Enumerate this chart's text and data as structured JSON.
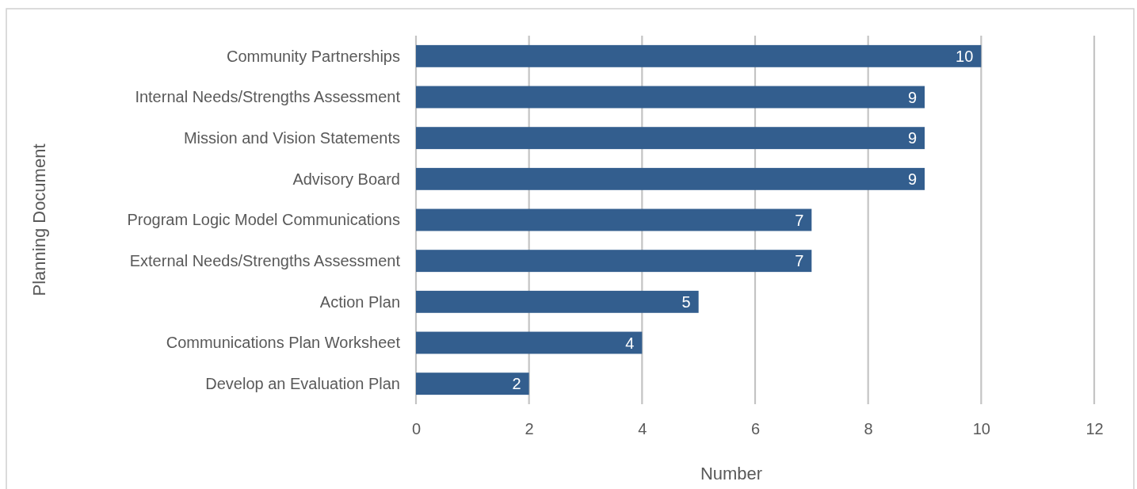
{
  "chart_data": {
    "type": "bar",
    "orientation": "horizontal",
    "xlabel": "Number",
    "ylabel": "Planning Document",
    "categories": [
      "Community Partnerships",
      "Internal Needs/Strengths Assessment",
      "Mission and Vision Statements",
      "Advisory Board",
      "Program Logic Model Communications",
      "External Needs/Strengths Assessment",
      "Action Plan",
      "Communications Plan Worksheet",
      "Develop an Evaluation Plan"
    ],
    "values": [
      10,
      9,
      9,
      9,
      7,
      7,
      5,
      4,
      2
    ],
    "color": "#335e8e",
    "xlim": [
      0,
      12
    ],
    "xticks": [
      0,
      2,
      4,
      6,
      8,
      10,
      12
    ],
    "grid": "x",
    "data_labels": true
  }
}
